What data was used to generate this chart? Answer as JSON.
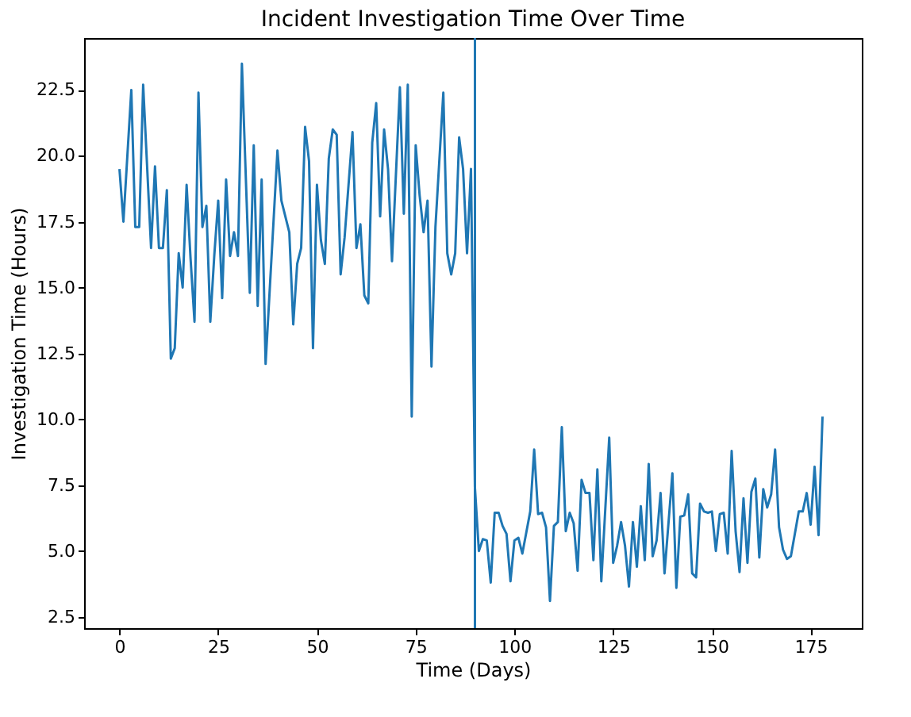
{
  "chart_data": {
    "type": "line",
    "title": "Incident Investigation Time Over Time",
    "xlabel": "Time (Days)",
    "ylabel": "Investigation Time (Hours)",
    "xlim": [
      -8.95,
      187.95
    ],
    "ylim": [
      2.07,
      24.47
    ],
    "xticks": [
      0,
      25,
      50,
      75,
      100,
      125,
      150,
      175
    ],
    "yticks": [
      {
        "value": 2.5,
        "label": "2.5"
      },
      {
        "value": 5,
        "label": "5.0"
      },
      {
        "value": 7.5,
        "label": "7.5"
      },
      {
        "value": 10,
        "label": "10.0"
      },
      {
        "value": 12.5,
        "label": "12.5"
      },
      {
        "value": 15,
        "label": "15.0"
      },
      {
        "value": 17.5,
        "label": "17.5"
      },
      {
        "value": 20,
        "label": "20.0"
      },
      {
        "value": 22.5,
        "label": "22.5"
      }
    ],
    "grid": false,
    "ref_lines": [
      {
        "axis": "x",
        "value": 90,
        "color": "#1f77b4"
      }
    ],
    "series": [
      {
        "color": "#1f77b4",
        "x": [
          0,
          1,
          3,
          4,
          5,
          6,
          8,
          9,
          10,
          11,
          12,
          13,
          14,
          15,
          16,
          17,
          18,
          19,
          20,
          21,
          22,
          23,
          24,
          25,
          26,
          27,
          28,
          29,
          30,
          31,
          33,
          34,
          35,
          36,
          37,
          40,
          41,
          43,
          44,
          45,
          46,
          47,
          48,
          49,
          50,
          51,
          52,
          53,
          54,
          55,
          56,
          57,
          59,
          60,
          61,
          62,
          63,
          64,
          65,
          66,
          67,
          68,
          69,
          71,
          72,
          73,
          74,
          75,
          76,
          77,
          78,
          79,
          80,
          82,
          83,
          84,
          85,
          86,
          87,
          88,
          89,
          90,
          91,
          92,
          93,
          94,
          95,
          96,
          97,
          98,
          99,
          100,
          101,
          102,
          103,
          104,
          105,
          106,
          107,
          108,
          109,
          110,
          111,
          112,
          113,
          114,
          115,
          116,
          117,
          118,
          119,
          120,
          121,
          122,
          124,
          125,
          126,
          127,
          128,
          129,
          130,
          131,
          132,
          133,
          134,
          135,
          136,
          137,
          138,
          140,
          141,
          142,
          143,
          144,
          145,
          146,
          147,
          148,
          149,
          150,
          151,
          152,
          153,
          154,
          155,
          156,
          157,
          158,
          159,
          160,
          161,
          162,
          163,
          164,
          165,
          166,
          167,
          168,
          169,
          170,
          171,
          172,
          173,
          174,
          175,
          176,
          177,
          178
        ],
        "values": [
          19.5,
          17.5,
          22.5,
          17.3,
          17.3,
          22.7,
          16.5,
          19.6,
          16.5,
          16.5,
          18.7,
          12.3,
          12.7,
          16.3,
          15.0,
          18.9,
          16.1,
          13.7,
          22.4,
          17.3,
          18.1,
          13.7,
          16.2,
          18.3,
          14.6,
          19.1,
          16.2,
          17.1,
          16.2,
          23.5,
          14.8,
          20.4,
          14.3,
          19.1,
          12.1,
          20.2,
          18.3,
          17.1,
          13.6,
          15.9,
          16.5,
          21.1,
          19.8,
          12.7,
          18.9,
          16.8,
          15.9,
          19.9,
          21.0,
          20.8,
          15.5,
          16.9,
          20.9,
          16.5,
          17.4,
          14.7,
          14.4,
          20.5,
          22.0,
          17.7,
          21.0,
          19.5,
          16.0,
          22.6,
          17.8,
          22.7,
          10.1,
          20.4,
          18.5,
          17.1,
          18.3,
          12.0,
          17.3,
          22.4,
          16.3,
          15.5,
          16.3,
          20.7,
          19.5,
          16.3,
          19.5,
          7.4,
          5.0,
          5.45,
          5.4,
          3.8,
          6.45,
          6.45,
          5.95,
          5.65,
          3.85,
          5.4,
          5.5,
          4.9,
          5.7,
          6.5,
          8.85,
          6.4,
          6.45,
          5.9,
          3.1,
          5.95,
          6.1,
          9.7,
          5.75,
          6.45,
          6.05,
          4.25,
          7.7,
          7.2,
          7.2,
          4.65,
          8.1,
          3.85,
          9.3,
          4.55,
          5.2,
          6.1,
          5.2,
          3.65,
          6.1,
          4.4,
          6.7,
          4.65,
          8.3,
          4.8,
          5.4,
          7.2,
          4.15,
          7.95,
          3.6,
          6.3,
          6.35,
          7.15,
          4.15,
          4.0,
          6.8,
          6.5,
          6.45,
          6.5,
          5.0,
          6.4,
          6.45,
          4.9,
          8.8,
          5.75,
          4.2,
          7.0,
          4.55,
          7.25,
          7.75,
          4.75,
          7.35,
          6.65,
          7.15,
          8.85,
          5.9,
          5.05,
          4.7,
          4.8,
          5.65,
          6.5,
          6.5,
          7.2,
          6.0,
          8.2,
          5.6,
          10.1
        ]
      }
    ]
  }
}
